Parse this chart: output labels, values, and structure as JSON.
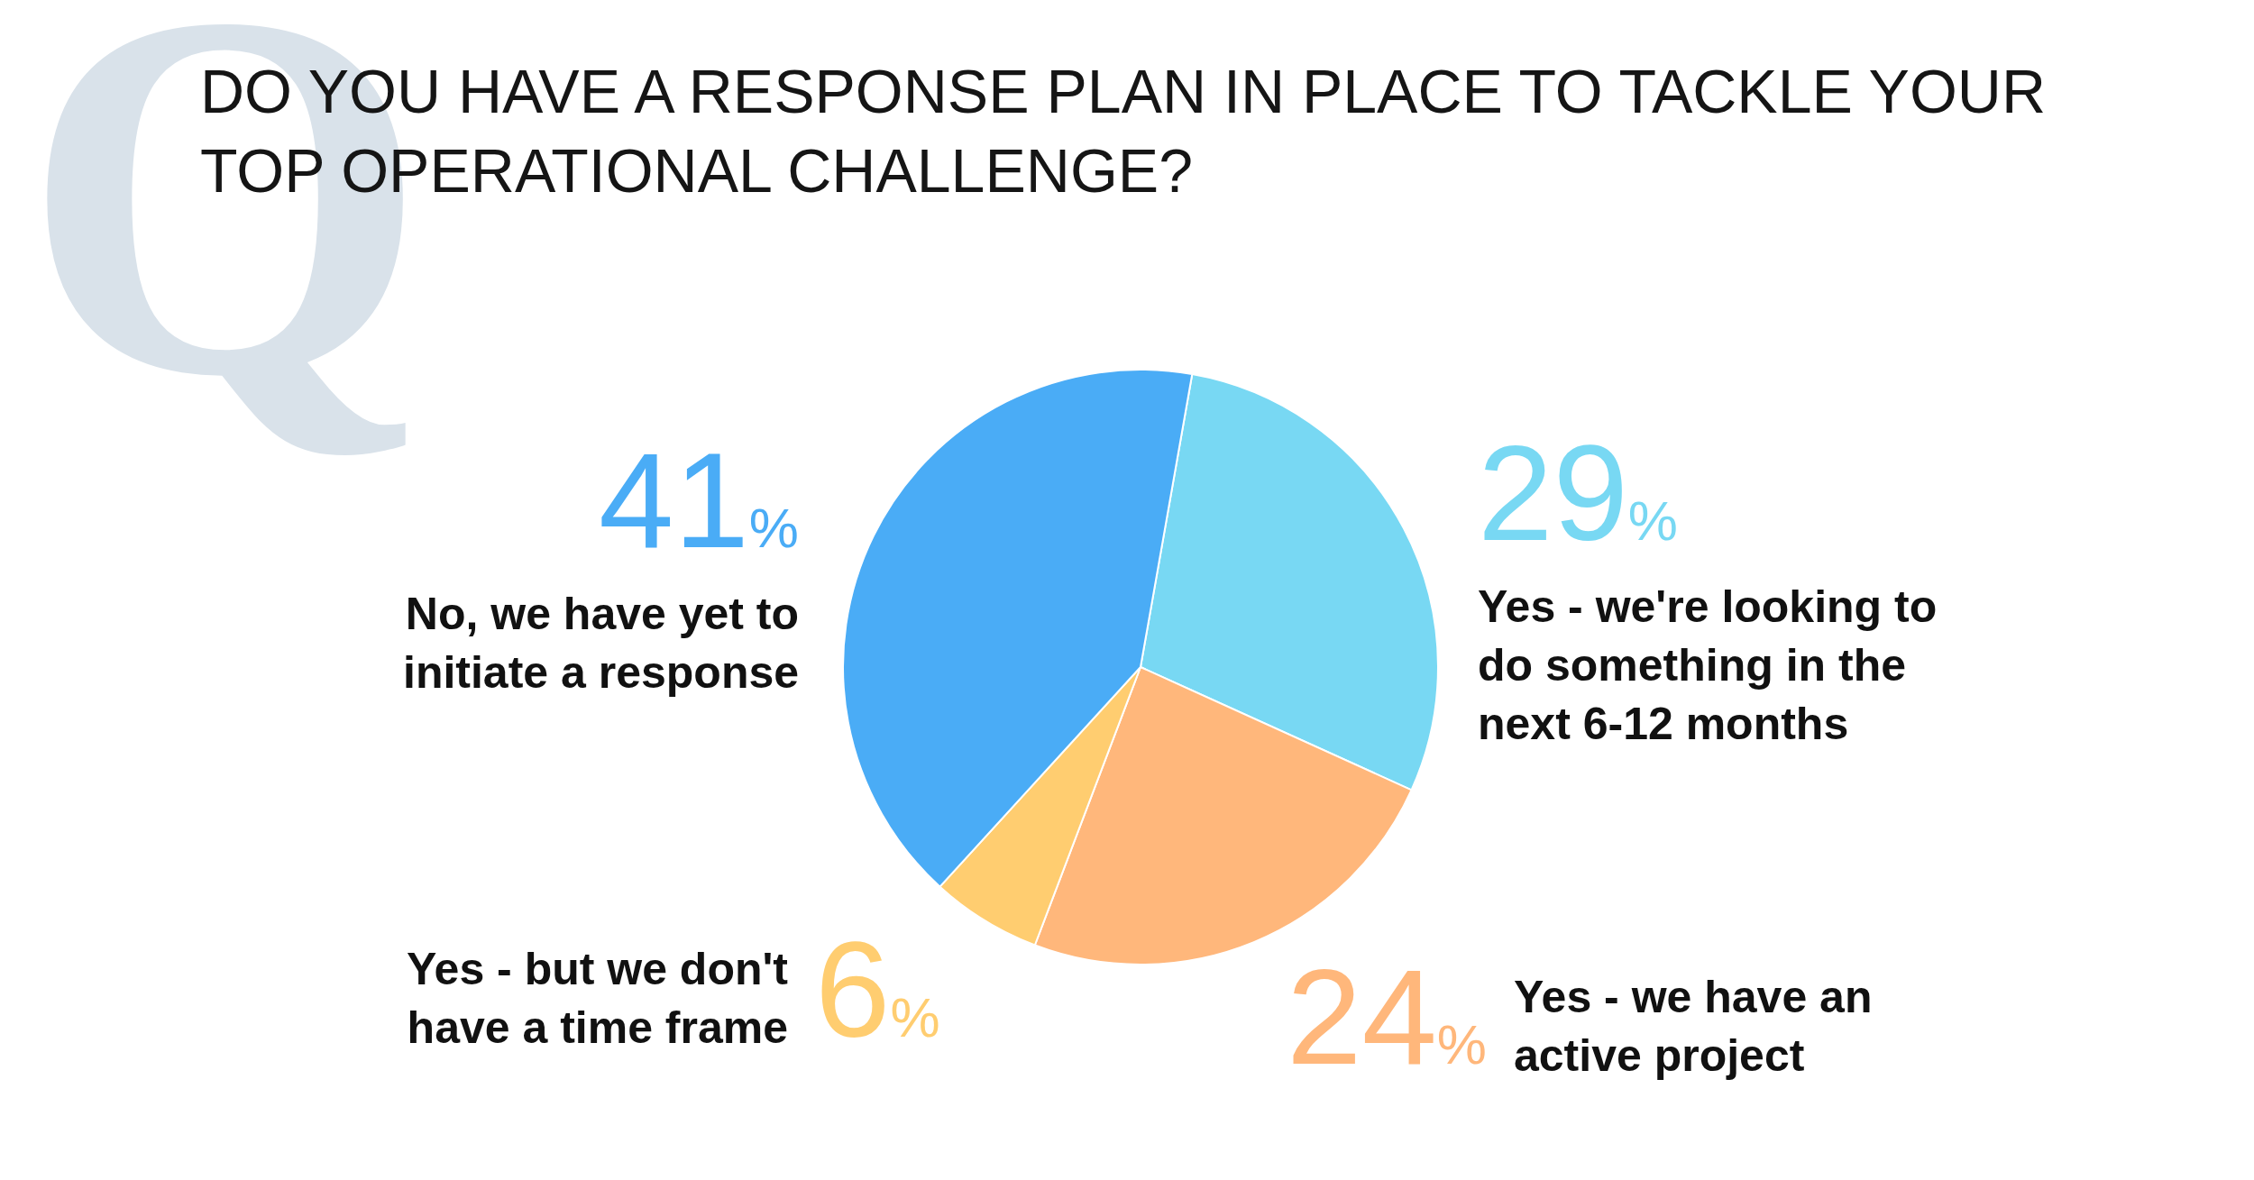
{
  "chart_data": {
    "type": "pie",
    "title": "DO YOU HAVE A RESPONSE PLAN IN PLACE TO TACKLE YOUR TOP OPERATIONAL CHALLENGE?",
    "categories": [
      "Yes - we're looking to do something in the next 6-12 months",
      "Yes - we have an active project",
      "Yes - but we don't have a time frame",
      "No, we have yet to initiate a response"
    ],
    "values": [
      29,
      24,
      6,
      41
    ],
    "colors": [
      "#78d8f3",
      "#ffb77b",
      "#ffcd70",
      "#4aacf6"
    ],
    "value_labels": [
      "29%",
      "24%",
      "6%",
      "41%"
    ],
    "annotations": [
      "Q"
    ]
  }
}
